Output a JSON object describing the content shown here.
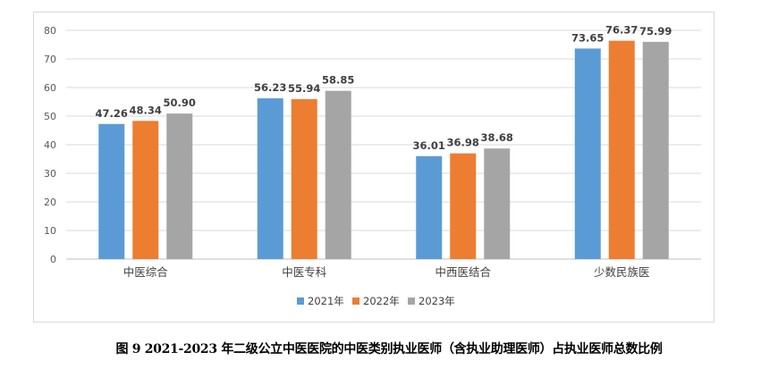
{
  "chart_data": {
    "type": "bar",
    "categories": [
      "中医综合",
      "中医专科",
      "中西医结合",
      "少数民族医"
    ],
    "series": [
      {
        "name": "2021年",
        "color": "#5b9bd5",
        "values": [
          47.26,
          56.23,
          36.01,
          73.65
        ]
      },
      {
        "name": "2022年",
        "color": "#ed7d31",
        "values": [
          48.34,
          55.94,
          36.98,
          76.37
        ]
      },
      {
        "name": "2023年",
        "color": "#a5a5a5",
        "values": [
          50.9,
          58.85,
          38.68,
          75.99
        ]
      }
    ],
    "value_labels": [
      [
        "47.26",
        "56.23",
        "36.01",
        "73.65"
      ],
      [
        "48.34",
        "55.94",
        "36.98",
        "76.37"
      ],
      [
        "50.90",
        "58.85",
        "38.68",
        "75.99"
      ]
    ],
    "yticks": [
      "0",
      "10",
      "20",
      "30",
      "40",
      "50",
      "60",
      "70",
      "80"
    ],
    "ylim": [
      0,
      80
    ],
    "grid": true,
    "legend": "bottom"
  },
  "caption": "图 9 2021-2023 年二级公立中医医院的中医类别执业医师（含执业助理医师）占执业医师总数比例"
}
